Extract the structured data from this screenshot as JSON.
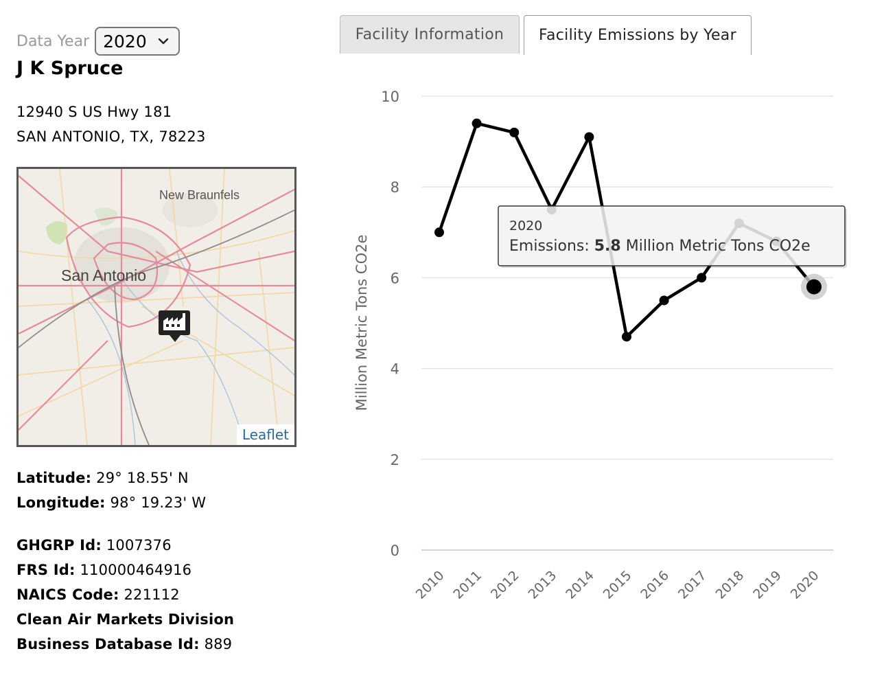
{
  "data_year": {
    "label": "Data Year",
    "selected": "2020"
  },
  "facility": {
    "name": "J K Spruce",
    "address_line1": "12940 S US Hwy 181",
    "address_line2": "SAN ANTONIO, TX, 78223"
  },
  "map": {
    "labels": {
      "city_main": "San Antonio",
      "city_secondary": "New Braunfels"
    },
    "attribution": "Leaflet"
  },
  "location": {
    "latitude_label": "Latitude:",
    "latitude_value": "29° 18.55' N",
    "longitude_label": "Longitude:",
    "longitude_value": "98° 19.23' W"
  },
  "ids": {
    "ghgrp_label": "GHGRP Id:",
    "ghgrp_value": "1007376",
    "frs_label": "FRS Id:",
    "frs_value": "110000464916",
    "naics_label": "NAICS Code:",
    "naics_value": "221112",
    "camd_label_line1": "Clean Air Markets Division",
    "camd_label_line2": "Business Database Id:",
    "camd_value": "889"
  },
  "tabs": [
    {
      "label": "Facility Information",
      "active": false
    },
    {
      "label": "Facility Emissions by Year",
      "active": true
    }
  ],
  "chart_data": {
    "type": "line",
    "categories": [
      "2010",
      "2011",
      "2012",
      "2013",
      "2014",
      "2015",
      "2016",
      "2017",
      "2018",
      "2019",
      "2020"
    ],
    "values": [
      7.0,
      9.4,
      9.2,
      7.5,
      9.1,
      4.7,
      5.5,
      6.0,
      7.2,
      6.8,
      5.8
    ],
    "ylabel": "Million Metric Tons CO2e",
    "ylim": [
      0,
      10
    ],
    "yticks": [
      0,
      2,
      4,
      6,
      8,
      10
    ],
    "tooltip": {
      "year": "2020",
      "prefix": "Emissions: ",
      "value": "5.8",
      "suffix": " Million Metric Tons CO2e"
    },
    "colors": {
      "line": "#000000",
      "grid": "#e6e6e6",
      "axis_text": "#666666"
    }
  }
}
